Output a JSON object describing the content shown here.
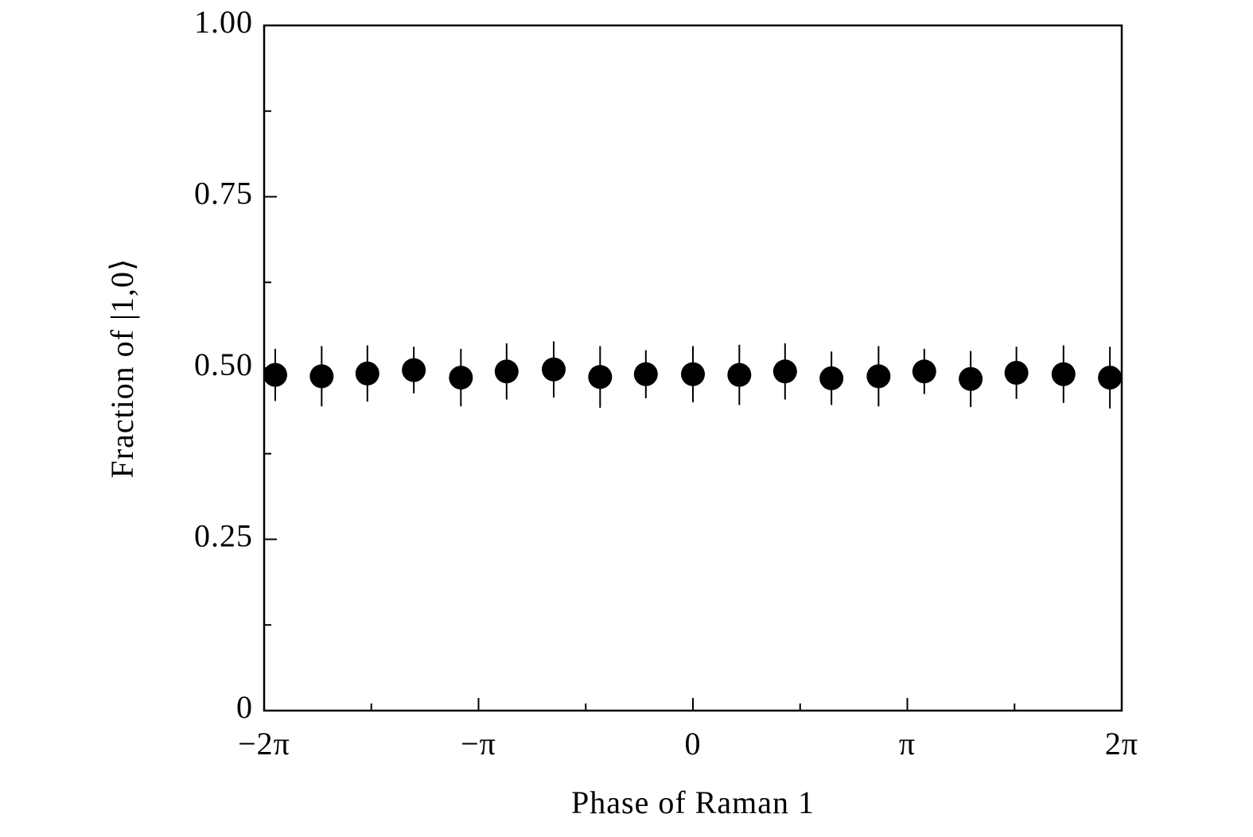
{
  "chart_data": {
    "type": "scatter",
    "x_label": "Phase of Raman 1",
    "y_label": "Fraction of |1,0⟩",
    "x": [
      -6.12,
      -5.44,
      -4.77,
      -4.09,
      -3.4,
      -2.73,
      -2.04,
      -1.36,
      -0.69,
      0,
      0.68,
      1.35,
      2.03,
      2.72,
      3.39,
      4.07,
      4.74,
      5.43,
      6.11
    ],
    "series": [
      {
        "color": "#000000",
        "values": [
          0.49,
          0.488,
          0.492,
          0.497,
          0.486,
          0.495,
          0.498,
          0.487,
          0.491,
          0.491,
          0.49,
          0.495,
          0.485,
          0.488,
          0.495,
          0.484,
          0.493,
          0.491,
          0.486
        ],
        "errors": [
          0.038,
          0.044,
          0.041,
          0.034,
          0.042,
          0.041,
          0.041,
          0.045,
          0.035,
          0.041,
          0.044,
          0.041,
          0.039,
          0.044,
          0.033,
          0.041,
          0.038,
          0.042,
          0.045
        ]
      }
    ],
    "xlim": [
      -6.2832,
      6.2832
    ],
    "xticks": [
      {
        "value": -6.2832,
        "label": "−2π"
      },
      {
        "value": -3.1416,
        "label": "−π"
      },
      0,
      {
        "value": 3.1416,
        "label": "π"
      },
      {
        "value": 6.2832,
        "label": "2π"
      }
    ],
    "xminor_ticks": [
      -4.7124,
      -1.5708,
      1.5708,
      4.7124
    ],
    "ylim": [
      0,
      1
    ],
    "yticks": [
      0,
      0.25,
      {
        "value": 0.5,
        "label": "0.50"
      },
      0.75,
      {
        "value": 1,
        "label": "1.00"
      }
    ],
    "yminor_ticks": [
      0.125,
      0.375,
      0.625,
      0.875
    ],
    "grid": false
  }
}
